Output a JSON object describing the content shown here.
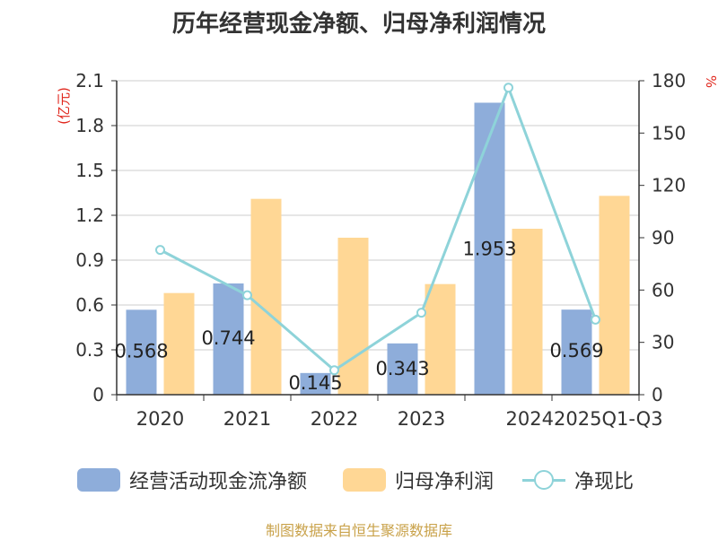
{
  "title": "历年经营现金净额、归母净利润情况",
  "source": "制图数据来自恒生聚源数据库",
  "colors": {
    "bar1": "#8eadda",
    "bar2": "#ffd795",
    "line": "#8ed3d9",
    "grid": "#cccccc",
    "axis": "#333333",
    "unit": "#e0261c",
    "text": "#333333"
  },
  "chart_data": {
    "type": "bar+line",
    "categories": [
      "2020",
      "2021",
      "2022",
      "2023",
      "2024",
      "2025Q1-Q3"
    ],
    "left_axis": {
      "unit": "(亿元)",
      "ticks": [
        "0",
        "0.3",
        "0.6",
        "0.9",
        "1.2",
        "1.5",
        "1.8",
        "2.1"
      ],
      "range": [
        0,
        2.1
      ]
    },
    "right_axis": {
      "unit": "%",
      "ticks": [
        "0",
        "30",
        "60",
        "90",
        "120",
        "150",
        "180"
      ],
      "range": [
        0,
        180
      ]
    },
    "series": [
      {
        "name": "经营活动现金流净额",
        "type": "bar",
        "axis": "left",
        "values": [
          0.568,
          0.744,
          0.145,
          0.343,
          1.953,
          0.569
        ],
        "labels": [
          "0.568",
          "0.744",
          "0.145",
          "0.343",
          "1.953",
          "0.569"
        ]
      },
      {
        "name": "归母净利润",
        "type": "bar",
        "axis": "left",
        "values": [
          0.68,
          1.31,
          1.05,
          0.74,
          1.11,
          1.33
        ]
      },
      {
        "name": "净现比",
        "type": "line",
        "axis": "right",
        "values": [
          83,
          57,
          14,
          47,
          176,
          43
        ]
      }
    ]
  }
}
